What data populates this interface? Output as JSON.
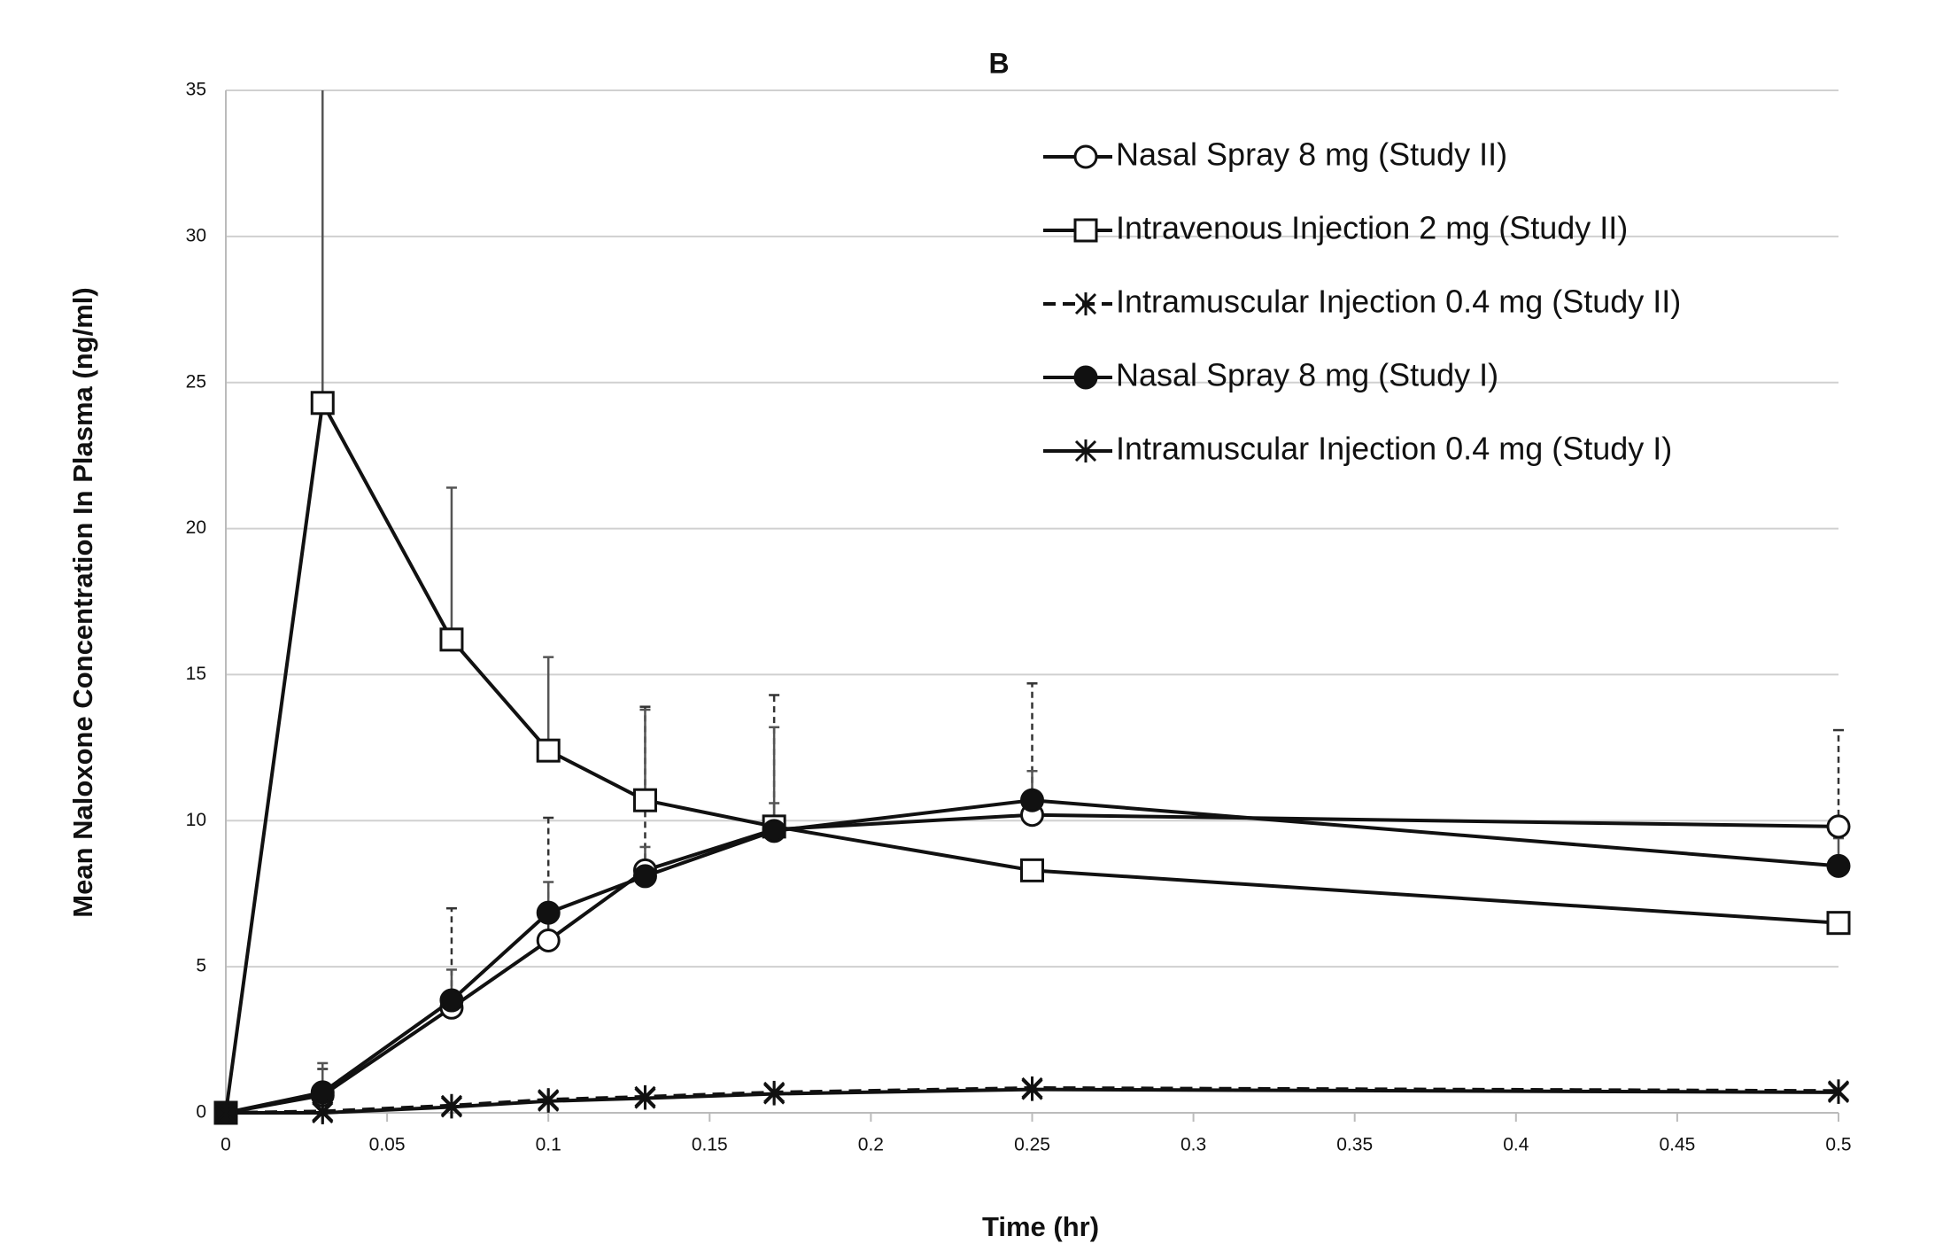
{
  "chart_data": {
    "type": "line",
    "title": "B",
    "x_label": "Time (hr)",
    "y_label": "Mean Naloxone Concentration In Plasma (ng/ml)",
    "x": [
      0,
      0.03,
      0.07,
      0.1,
      0.13,
      0.17,
      0.25,
      0.5
    ],
    "xlim": [
      0,
      0.5
    ],
    "xticks": [
      0,
      0.05,
      0.1,
      0.15,
      0.2,
      0.25,
      0.3,
      0.35,
      0.4,
      0.45,
      0.5
    ],
    "ylim": [
      0,
      35
    ],
    "yticks": [
      0,
      5,
      10,
      15,
      20,
      25,
      30,
      35
    ],
    "grid": true,
    "legend": "upper right",
    "series": [
      {
        "name": "Nasal Spray 8 mg (Study II)",
        "color": "#111111",
        "marker": "circle-open",
        "dashed": false,
        "error_dashed": true,
        "values": [
          0,
          0.6,
          3.6,
          5.9,
          8.3,
          9.7,
          10.2,
          9.8
        ],
        "errors": [
          null,
          0.9,
          3.4,
          4.2,
          5.6,
          4.6,
          4.5,
          3.3
        ]
      },
      {
        "name": "Intravenous Injection 2 mg (Study II)",
        "color": "#111111",
        "marker": "square-open",
        "dashed": false,
        "error_dashed": false,
        "values": [
          0,
          24.3,
          16.2,
          12.4,
          10.7,
          9.8,
          8.3,
          6.5
        ],
        "errors": [
          null,
          11.5,
          5.2,
          3.2,
          3.1,
          3.4,
          null,
          null
        ]
      },
      {
        "name": "Intramuscular Injection 0.4 mg (Study II)",
        "color": "#111111",
        "marker": "asterisk",
        "dashed": true,
        "error_dashed": true,
        "values": [
          0,
          0.05,
          0.25,
          0.45,
          0.55,
          0.7,
          0.85,
          0.75
        ],
        "errors": [
          null,
          null,
          null,
          null,
          null,
          null,
          null,
          null
        ]
      },
      {
        "name": "Nasal Spray 8 mg (Study I)",
        "color": "#111111",
        "marker": "circle-filled",
        "dashed": false,
        "error_dashed": false,
        "values": [
          0,
          0.7,
          3.85,
          6.85,
          8.1,
          9.65,
          10.7,
          8.45
        ],
        "errors": [
          null,
          1.0,
          1.05,
          1.05,
          1.0,
          0.95,
          1.0,
          0.95
        ]
      },
      {
        "name": "Intramuscular Injection 0.4 mg (Study I)",
        "color": "#111111",
        "marker": "asterisk",
        "dashed": false,
        "error_dashed": false,
        "values": [
          0,
          0,
          0.2,
          0.4,
          0.5,
          0.65,
          0.8,
          0.7
        ],
        "errors": [
          null,
          null,
          null,
          null,
          null,
          null,
          null,
          null
        ]
      }
    ]
  }
}
